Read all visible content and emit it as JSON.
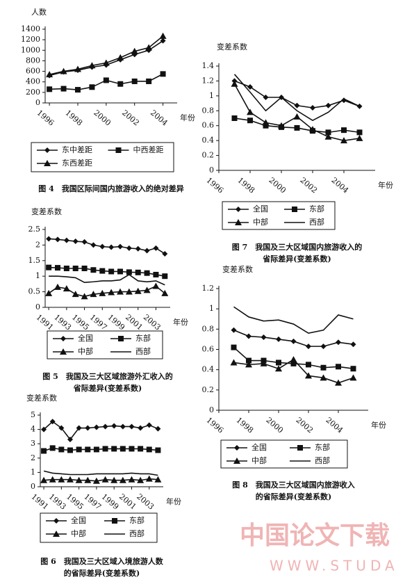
{
  "chart_data": [
    {
      "type": "line",
      "caption": [
        "图 4　我国区际间国内旅游收入的绝对差异"
      ],
      "y_label": "人数",
      "x_label": "年份",
      "x": [
        1996,
        1997,
        1998,
        1999,
        2000,
        2001,
        2002,
        2003,
        2004
      ],
      "series": [
        {
          "name": "东中差距",
          "color": "#111111",
          "marker": "diamond",
          "values": [
            520,
            590,
            620,
            680,
            720,
            820,
            920,
            1000,
            1180
          ]
        },
        {
          "name": "中西差距",
          "color": "#111111",
          "marker": "square",
          "values": [
            260,
            270,
            250,
            300,
            430,
            360,
            410,
            410,
            550
          ]
        },
        {
          "name": "东西差距",
          "color": "#111111",
          "marker": "triangle",
          "values": [
            540,
            600,
            640,
            710,
            760,
            860,
            980,
            1050,
            1270
          ]
        }
      ],
      "xlim": [
        1995.7,
        2005
      ],
      "ylim": [
        0,
        1400
      ],
      "xticks": [
        1996,
        1998,
        2000,
        2002,
        2004
      ],
      "yticks": [
        0,
        200,
        400,
        600,
        800,
        1000,
        1200,
        1400
      ],
      "legend": "bottom"
    },
    {
      "type": "line",
      "caption": [
        "图 7　我国及三大区域国内旅游收入的",
        "省际差异(变差系数)"
      ],
      "y_label": "变差系数",
      "x_label": "年份",
      "x": [
        1997,
        1998,
        1999,
        2000,
        2001,
        2002,
        2003,
        2004,
        2005
      ],
      "series": [
        {
          "name": "全国",
          "color": "#111111",
          "marker": "diamond",
          "values": [
            1.2,
            1.12,
            0.98,
            0.98,
            0.87,
            0.84,
            0.87,
            0.94,
            0.86
          ]
        },
        {
          "name": "东部",
          "color": "#111111",
          "marker": "square",
          "values": [
            0.7,
            0.67,
            0.6,
            0.58,
            0.57,
            0.53,
            0.51,
            0.54,
            0.51
          ]
        },
        {
          "name": "中部",
          "color": "#111111",
          "marker": "triangle",
          "values": [
            1.16,
            0.78,
            0.64,
            0.6,
            0.72,
            0.55,
            0.45,
            0.4,
            0.43
          ]
        },
        {
          "name": "西部",
          "color": "#111111",
          "marker": "none",
          "values": [
            1.29,
            1.05,
            0.8,
            0.98,
            0.8,
            0.67,
            0.78,
            0.96,
            0.86
          ]
        }
      ],
      "xlim": [
        1996,
        2006
      ],
      "ylim": [
        0,
        1.4
      ],
      "xticks": [
        1996,
        1998,
        2000,
        2002,
        2004
      ],
      "yticks": [
        0,
        0.2,
        0.4,
        0.6,
        0.8,
        1,
        1.2,
        1.4
      ],
      "legend": "bottom"
    },
    {
      "type": "line",
      "caption": [
        "图 5　我国及三大区域旅游外汇收入的",
        "省际差异(变差系数)"
      ],
      "y_label": "变差系数",
      "x_label": "年份",
      "x": [
        1991,
        1992,
        1993,
        1994,
        1995,
        1996,
        1997,
        1998,
        1999,
        2000,
        2001,
        2002,
        2003,
        2004
      ],
      "series": [
        {
          "name": "全国",
          "color": "#111111",
          "marker": "diamond",
          "values": [
            2.2,
            2.18,
            2.15,
            2.12,
            2.1,
            2.0,
            1.95,
            1.93,
            1.95,
            1.9,
            1.88,
            1.82,
            1.9,
            1.72
          ]
        },
        {
          "name": "东部",
          "color": "#111111",
          "marker": "square",
          "values": [
            1.28,
            1.27,
            1.25,
            1.25,
            1.25,
            1.2,
            1.17,
            1.15,
            1.15,
            1.13,
            1.12,
            1.1,
            1.05,
            1.0
          ]
        },
        {
          "name": "中部",
          "color": "#111111",
          "marker": "triangle",
          "values": [
            0.45,
            0.65,
            0.6,
            0.42,
            0.35,
            0.42,
            0.45,
            0.48,
            0.5,
            0.5,
            0.52,
            0.55,
            0.68,
            0.45
          ]
        },
        {
          "name": "西部",
          "color": "#111111",
          "marker": "none",
          "values": [
            1.0,
            1.0,
            0.98,
            0.95,
            0.8,
            0.82,
            0.85,
            0.85,
            0.88,
            1.05,
            0.85,
            0.82,
            0.85,
            0.72
          ]
        }
      ],
      "xlim": [
        1990.6,
        2004.6
      ],
      "ylim": [
        0,
        2.5
      ],
      "xticks": [
        1991,
        1993,
        1995,
        1997,
        1999,
        2001,
        2003
      ],
      "yticks": [
        0,
        0.5,
        1,
        1.5,
        2,
        2.5
      ],
      "legend": "bottom"
    },
    {
      "type": "line",
      "caption": [
        "图 8　我国及三大区域国内旅游收入",
        "的省际差异(变差系数)"
      ],
      "y_label": "变差系数",
      "x_label": "年份",
      "x": [
        1997,
        1998,
        1999,
        2000,
        2001,
        2002,
        2003,
        2004,
        2005
      ],
      "series": [
        {
          "name": "全国",
          "color": "#111111",
          "marker": "diamond",
          "values": [
            0.79,
            0.73,
            0.72,
            0.7,
            0.68,
            0.63,
            0.63,
            0.67,
            0.65
          ]
        },
        {
          "name": "东部",
          "color": "#111111",
          "marker": "square",
          "values": [
            0.62,
            0.49,
            0.49,
            0.47,
            0.46,
            0.45,
            0.42,
            0.43,
            0.41
          ]
        },
        {
          "name": "中部",
          "color": "#111111",
          "marker": "triangle",
          "values": [
            0.47,
            0.45,
            0.46,
            0.41,
            0.5,
            0.34,
            0.32,
            0.27,
            0.32
          ]
        },
        {
          "name": "西部",
          "color": "#111111",
          "marker": "none",
          "values": [
            1.02,
            0.92,
            0.88,
            0.89,
            0.85,
            0.76,
            0.79,
            0.94,
            0.9
          ]
        }
      ],
      "xlim": [
        1996,
        2006
      ],
      "ylim": [
        0,
        1.2
      ],
      "xticks": [
        1996,
        1998,
        2000,
        2002,
        2004
      ],
      "yticks": [
        0,
        0.2,
        0.4,
        0.6,
        0.8,
        1,
        1.2
      ],
      "legend": "bottom"
    },
    {
      "type": "line",
      "caption": [
        "图 6　我国及三大区域入境旅游人数",
        "的省际差异(变差系数)"
      ],
      "y_label": "变差系数",
      "x_label": "年份",
      "x": [
        1991,
        1992,
        1993,
        1994,
        1995,
        1996,
        1997,
        1998,
        1999,
        2000,
        2001,
        2002,
        2003,
        2004
      ],
      "series": [
        {
          "name": "全国",
          "color": "#111111",
          "marker": "diamond",
          "values": [
            4.0,
            4.55,
            4.1,
            3.3,
            4.1,
            4.1,
            4.15,
            4.2,
            4.25,
            4.2,
            4.2,
            4.1,
            4.3,
            4.05
          ]
        },
        {
          "name": "东部",
          "color": "#111111",
          "marker": "square",
          "values": [
            2.5,
            2.7,
            2.6,
            2.55,
            2.6,
            2.6,
            2.6,
            2.65,
            2.65,
            2.65,
            2.65,
            2.65,
            2.6,
            2.55
          ]
        },
        {
          "name": "中部",
          "color": "#111111",
          "marker": "triangle",
          "values": [
            0.45,
            0.5,
            0.5,
            0.5,
            0.45,
            0.45,
            0.4,
            0.5,
            0.45,
            0.45,
            0.5,
            0.45,
            0.55,
            0.5
          ]
        },
        {
          "name": "西部",
          "color": "#111111",
          "marker": "none",
          "values": [
            1.1,
            0.95,
            0.9,
            0.85,
            0.85,
            0.85,
            0.9,
            0.9,
            0.9,
            0.9,
            0.95,
            0.9,
            0.9,
            0.8
          ]
        }
      ],
      "xlim": [
        1990.6,
        2004.6
      ],
      "ylim": [
        0,
        5
      ],
      "xticks": [
        1991,
        1993,
        1995,
        1997,
        1999,
        2001,
        2003
      ],
      "yticks": [
        0,
        1,
        2,
        3,
        4,
        5
      ],
      "legend": "bottom"
    }
  ],
  "watermark": {
    "title": "中国论文下载",
    "url": "WWW.STUDA.NET"
  }
}
